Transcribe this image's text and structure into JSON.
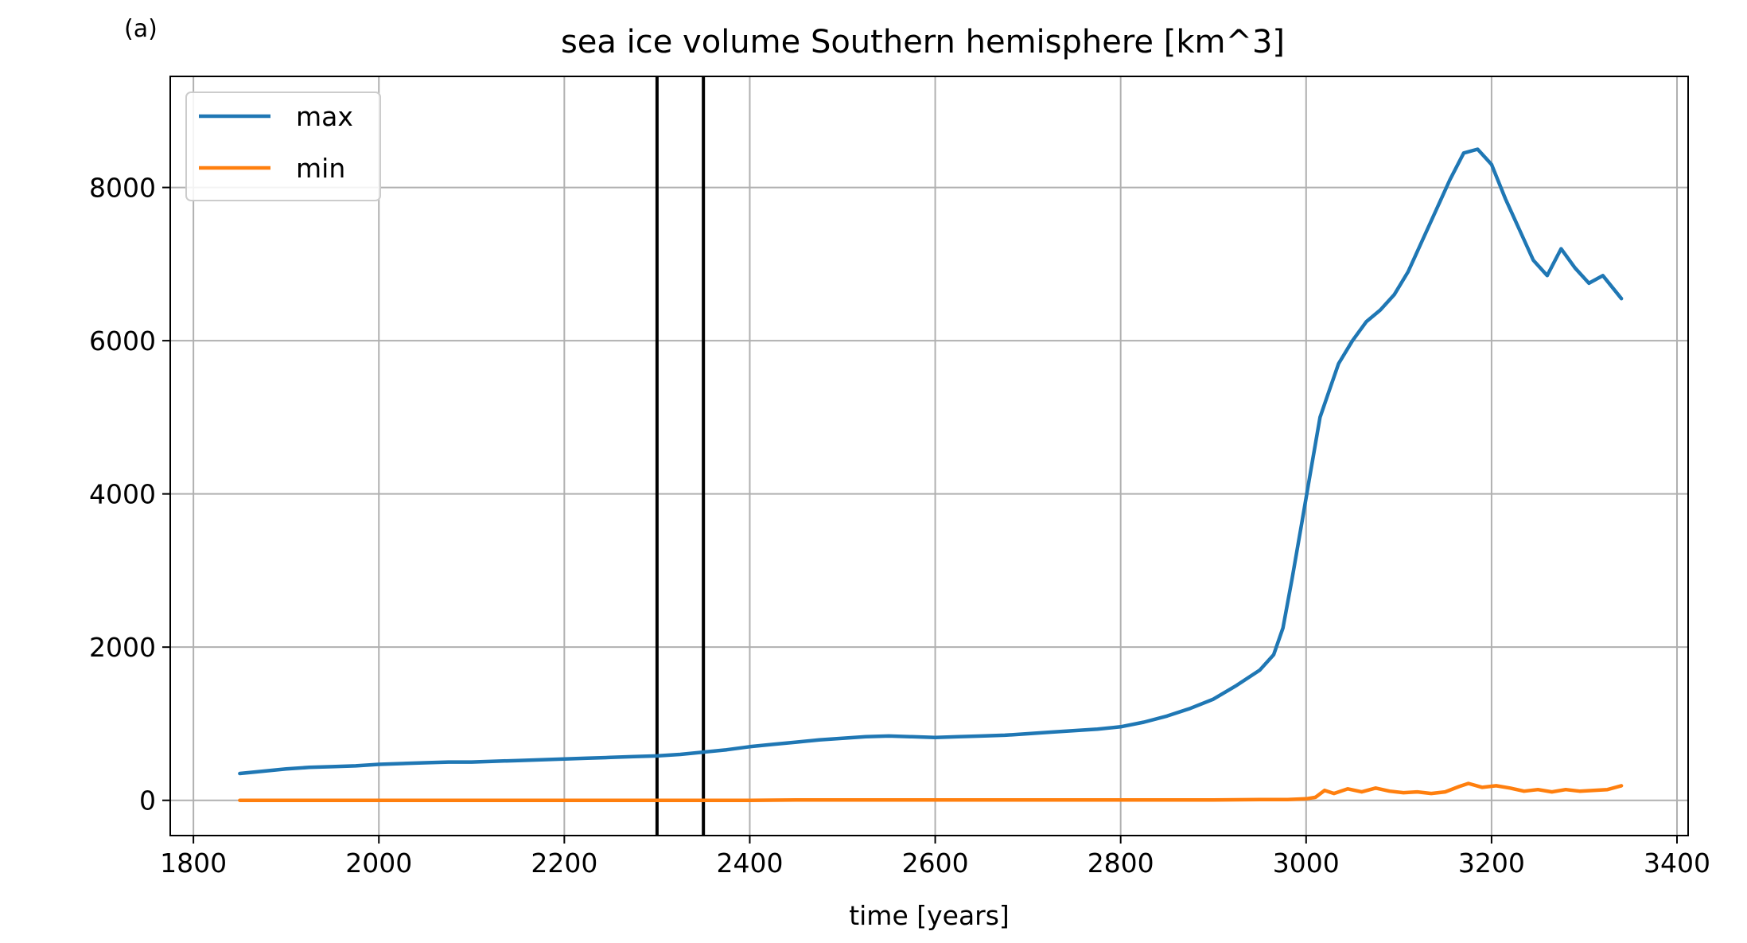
{
  "panel_label": "(a)",
  "chart_data": {
    "type": "line",
    "title": "sea ice volume Southern hemisphere [km^3]",
    "xlabel": "time [years]",
    "ylabel": "",
    "xlim": [
      1775,
      3412
    ],
    "ylim": [
      -460,
      9450
    ],
    "xticks": [
      1800,
      2000,
      2200,
      2400,
      2600,
      2800,
      3000,
      3200,
      3400
    ],
    "yticks": [
      0,
      2000,
      4000,
      6000,
      8000
    ],
    "grid": true,
    "legend_position": "top-left",
    "vertical_lines": [
      2300,
      2350
    ],
    "vertical_line_color": "#000000",
    "series": [
      {
        "name": "max",
        "color": "#1f77b4",
        "x": [
          1850,
          1875,
          1900,
          1925,
          1950,
          1975,
          2000,
          2025,
          2050,
          2075,
          2100,
          2125,
          2150,
          2175,
          2200,
          2225,
          2250,
          2275,
          2300,
          2325,
          2350,
          2375,
          2400,
          2425,
          2450,
          2475,
          2500,
          2525,
          2550,
          2575,
          2600,
          2625,
          2650,
          2675,
          2700,
          2725,
          2750,
          2775,
          2800,
          2825,
          2850,
          2875,
          2900,
          2925,
          2950,
          2965,
          2975,
          2985,
          2995,
          3005,
          3015,
          3025,
          3035,
          3050,
          3065,
          3080,
          3095,
          3110,
          3125,
          3140,
          3155,
          3170,
          3185,
          3200,
          3215,
          3230,
          3245,
          3260,
          3275,
          3290,
          3305,
          3320,
          3340
        ],
        "y": [
          350,
          380,
          410,
          430,
          440,
          450,
          470,
          480,
          490,
          500,
          500,
          510,
          520,
          530,
          540,
          550,
          560,
          570,
          580,
          600,
          630,
          660,
          700,
          730,
          760,
          790,
          810,
          830,
          840,
          830,
          820,
          830,
          840,
          850,
          870,
          890,
          910,
          930,
          960,
          1020,
          1100,
          1200,
          1320,
          1500,
          1700,
          1900,
          2250,
          2900,
          3600,
          4300,
          5000,
          5350,
          5700,
          6000,
          6250,
          6400,
          6600,
          6900,
          7300,
          7700,
          8100,
          8450,
          8500,
          8300,
          7850,
          7450,
          7050,
          6850,
          7200,
          6950,
          6750,
          6850,
          6550
        ]
      },
      {
        "name": "min",
        "color": "#ff7f0e",
        "x": [
          1850,
          1900,
          1950,
          2000,
          2050,
          2100,
          2150,
          2200,
          2250,
          2300,
          2350,
          2400,
          2450,
          2500,
          2550,
          2600,
          2650,
          2700,
          2750,
          2800,
          2850,
          2900,
          2950,
          2980,
          3000,
          3010,
          3020,
          3030,
          3045,
          3060,
          3075,
          3090,
          3105,
          3120,
          3135,
          3150,
          3165,
          3175,
          3190,
          3205,
          3220,
          3235,
          3250,
          3265,
          3280,
          3295,
          3310,
          3325,
          3340
        ],
        "y": [
          0,
          0,
          0,
          0,
          0,
          0,
          0,
          0,
          0,
          0,
          0,
          0,
          5,
          5,
          5,
          5,
          5,
          5,
          5,
          5,
          5,
          5,
          10,
          10,
          20,
          40,
          130,
          90,
          150,
          110,
          160,
          120,
          100,
          110,
          90,
          110,
          180,
          220,
          170,
          190,
          160,
          120,
          140,
          110,
          140,
          120,
          130,
          140,
          190
        ]
      }
    ]
  }
}
